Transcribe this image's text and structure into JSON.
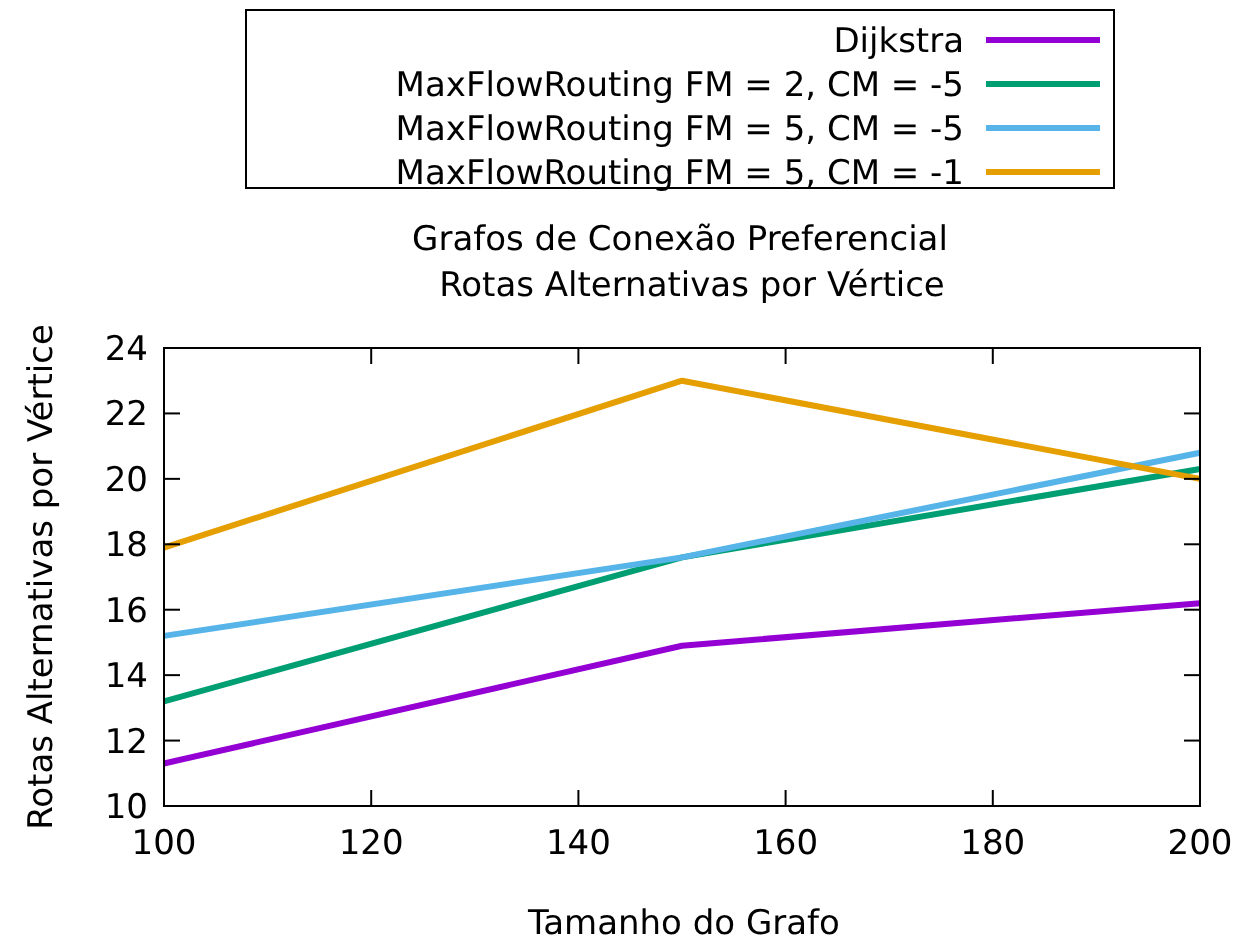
{
  "chart_data": {
    "type": "line",
    "title": "Grafos de Conexão Preferencial",
    "subtitle": "Rotas Alternativas por Vértice",
    "xlabel": "Tamanho do Grafo",
    "ylabel": "Rotas Alternativas por Vértice",
    "x": [
      100,
      150,
      200
    ],
    "series": [
      {
        "name": "Dijkstra",
        "color": "#9400d3",
        "values": [
          11.3,
          14.9,
          16.2
        ]
      },
      {
        "name": "MaxFlowRouting FM = 2, CM = -5",
        "color": "#009e73",
        "values": [
          13.2,
          17.6,
          20.3
        ]
      },
      {
        "name": "MaxFlowRouting FM = 5, CM = -5",
        "color": "#56b4e9",
        "values": [
          15.2,
          17.6,
          20.8
        ]
      },
      {
        "name": "MaxFlowRouting FM = 5, CM = -1",
        "color": "#e69f00",
        "values": [
          17.9,
          23.0,
          20.0
        ]
      }
    ],
    "xlim": [
      100,
      200
    ],
    "xticks": [
      100,
      120,
      140,
      160,
      180,
      200
    ],
    "ylim": [
      10,
      24
    ],
    "yticks": [
      10,
      12,
      14,
      16,
      18,
      20,
      22,
      24
    ],
    "grid": false,
    "legend": "top",
    "marker": "none",
    "line_style": "solid"
  }
}
